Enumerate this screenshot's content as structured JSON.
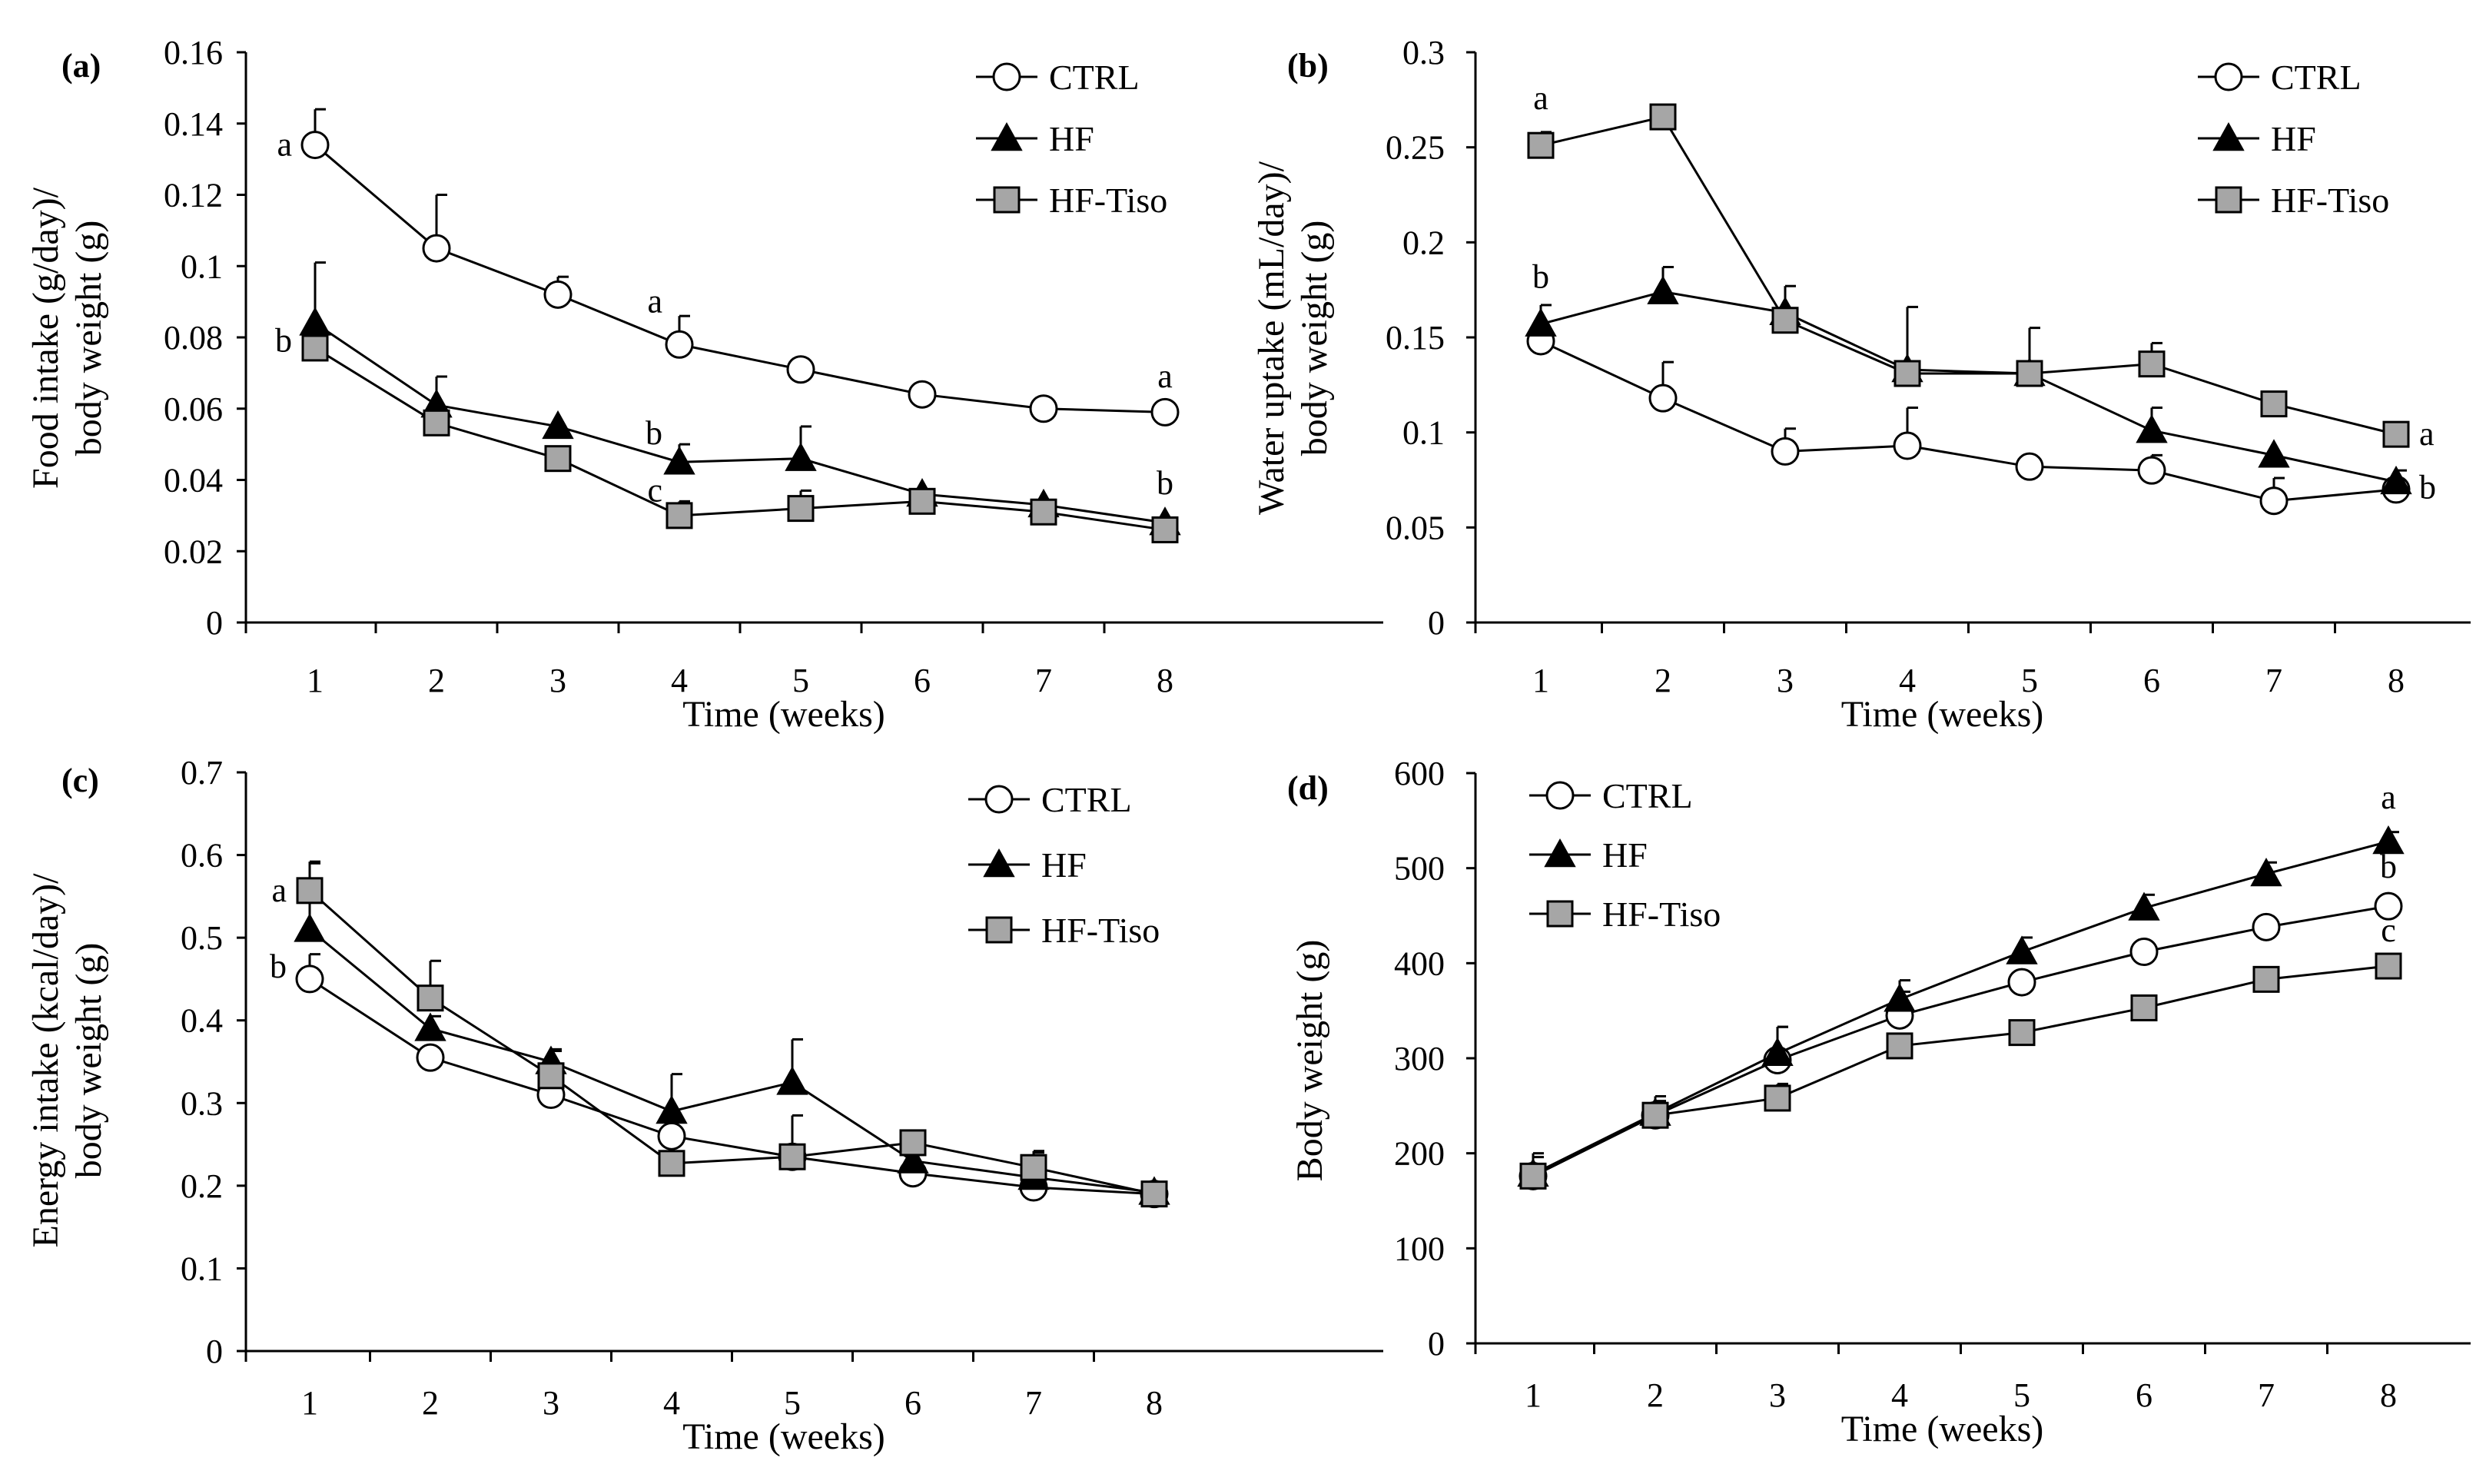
{
  "chart_data": [
    {
      "type": "line",
      "panel": "(a)",
      "ylabel_lines": [
        "Food intake (g/day)/",
        "body weight (g)"
      ],
      "xlabel": "Time (weeks)",
      "x": [
        1,
        2,
        3,
        4,
        5,
        6,
        7,
        8
      ],
      "ylim": [
        0,
        0.16
      ],
      "yticks": [
        0,
        0.02,
        0.04,
        0.06,
        0.08,
        0.1,
        0.12,
        0.14,
        0.16
      ],
      "ytick_labels": [
        "0",
        "0.02",
        "0.04",
        "0.06",
        "0.08",
        "0.1",
        "0.12",
        "0.14",
        "0.16"
      ],
      "legend": "top-right",
      "series": [
        {
          "name": "CTRL",
          "marker": "circle",
          "values": [
            0.134,
            0.105,
            0.092,
            0.078,
            0.071,
            0.064,
            0.06,
            0.059
          ],
          "errors": [
            0.01,
            0.015,
            0.005,
            0.008,
            0,
            0,
            0,
            0
          ]
        },
        {
          "name": "HF",
          "marker": "triangle",
          "values": [
            0.084,
            0.061,
            0.055,
            0.045,
            0.046,
            0.036,
            0.033,
            0.028
          ],
          "errors": [
            0.017,
            0.008,
            0,
            0.005,
            0.009,
            0,
            0,
            0
          ]
        },
        {
          "name": "HF-Tiso",
          "marker": "square",
          "values": [
            0.077,
            0.056,
            0.046,
            0.03,
            0.032,
            0.034,
            0.031,
            0.026
          ],
          "errors": [
            0,
            0,
            0,
            0.004,
            0.005,
            0,
            0,
            0.003
          ]
        }
      ],
      "annotations": [
        {
          "text": "a",
          "x": 1,
          "y": 0.134,
          "side": "left"
        },
        {
          "text": "b",
          "x": 1,
          "y": 0.079,
          "side": "left"
        },
        {
          "text": "a",
          "x": 4,
          "y": 0.087,
          "side": "above-left"
        },
        {
          "text": "b",
          "x": 4,
          "y": 0.05,
          "side": "above-left"
        },
        {
          "text": "c",
          "x": 4,
          "y": 0.034,
          "side": "above-left"
        },
        {
          "text": "a",
          "x": 8,
          "y": 0.066,
          "side": "above"
        },
        {
          "text": "b",
          "x": 8,
          "y": 0.036,
          "side": "above"
        }
      ]
    },
    {
      "type": "line",
      "panel": "(b)",
      "ylabel_lines": [
        "Water uptake (mL/day)/",
        "body weight (g)"
      ],
      "xlabel": "Time (weeks)",
      "x": [
        1,
        2,
        3,
        4,
        5,
        6,
        7,
        8
      ],
      "ylim": [
        0,
        0.3
      ],
      "yticks": [
        0,
        0.05,
        0.1,
        0.15,
        0.2,
        0.25,
        0.3
      ],
      "ytick_labels": [
        "0",
        "0.05",
        "0.1",
        "0.15",
        "0.2",
        "0.25",
        "0.3"
      ],
      "legend": "top-right",
      "series": [
        {
          "name": "CTRL",
          "marker": "circle",
          "values": [
            0.148,
            0.118,
            0.09,
            0.093,
            0.082,
            0.08,
            0.064,
            0.07
          ],
          "errors": [
            0,
            0.019,
            0.012,
            0.02,
            0,
            0.008,
            0.012,
            0
          ]
        },
        {
          "name": "HF",
          "marker": "triangle",
          "values": [
            0.157,
            0.174,
            0.163,
            0.133,
            0.131,
            0.101,
            0.088,
            0.074
          ],
          "errors": [
            0.01,
            0.013,
            0.014,
            0.033,
            0.024,
            0.012,
            0,
            0.006
          ]
        },
        {
          "name": "HF-Tiso",
          "marker": "square",
          "values": [
            0.251,
            0.266,
            0.159,
            0.131,
            0.131,
            0.136,
            0.115,
            0.099
          ],
          "errors": [
            0.007,
            0,
            0,
            0,
            0,
            0.011,
            0,
            0.006
          ]
        }
      ],
      "annotations": [
        {
          "text": "a",
          "x": 1,
          "y": 0.27,
          "side": "above"
        },
        {
          "text": "b",
          "x": 1,
          "y": 0.176,
          "side": "above"
        },
        {
          "text": "a",
          "x": 8,
          "y": 0.099,
          "side": "right"
        },
        {
          "text": "b",
          "x": 8,
          "y": 0.071,
          "side": "right"
        }
      ]
    },
    {
      "type": "line",
      "panel": "(c)",
      "ylabel_lines": [
        "Energy intake (kcal/day)/",
        "body weight (g)"
      ],
      "xlabel": "Time (weeks)",
      "x": [
        1,
        2,
        3,
        4,
        5,
        6,
        7,
        8
      ],
      "ylim": [
        0,
        0.7
      ],
      "yticks": [
        0,
        0.1,
        0.2,
        0.3,
        0.4,
        0.5,
        0.6,
        0.7
      ],
      "ytick_labels": [
        "0",
        "0.1",
        "0.2",
        "0.3",
        "0.4",
        "0.5",
        "0.6",
        "0.7"
      ],
      "legend": "top-right",
      "series": [
        {
          "name": "CTRL",
          "marker": "circle",
          "values": [
            0.45,
            0.355,
            0.31,
            0.26,
            0.235,
            0.215,
            0.198,
            0.19
          ],
          "errors": [
            0.03,
            0,
            0,
            0,
            0,
            0,
            0,
            0
          ]
        },
        {
          "name": "HF",
          "marker": "triangle",
          "values": [
            0.51,
            0.39,
            0.35,
            0.29,
            0.325,
            0.23,
            0.21,
            0.192
          ],
          "errors": [
            0.08,
            0.015,
            0.015,
            0.045,
            0.052,
            0,
            0.03,
            0.008
          ]
        },
        {
          "name": "HF-Tiso",
          "marker": "square",
          "values": [
            0.557,
            0.427,
            0.333,
            0.227,
            0.235,
            0.252,
            0.222,
            0.19
          ],
          "errors": [
            0.035,
            0.045,
            0.03,
            0,
            0.05,
            0,
            0.02,
            0
          ]
        }
      ],
      "annotations": [
        {
          "text": "a",
          "x": 1,
          "y": 0.557,
          "side": "left"
        },
        {
          "text": "b",
          "x": 1,
          "y": 0.465,
          "side": "left"
        }
      ]
    },
    {
      "type": "line",
      "panel": "(d)",
      "ylabel_lines": [
        "Body weight (g)"
      ],
      "xlabel": "Time (weeks)",
      "x": [
        1,
        2,
        3,
        4,
        5,
        6,
        7,
        8
      ],
      "ylim": [
        0,
        600
      ],
      "yticks": [
        0,
        100,
        200,
        300,
        400,
        500,
        600
      ],
      "ytick_labels": [
        "0",
        "100",
        "200",
        "300",
        "400",
        "500",
        "600"
      ],
      "legend": "top-left",
      "series": [
        {
          "name": "CTRL",
          "marker": "circle",
          "values": [
            176,
            240,
            298,
            345,
            380,
            412,
            438,
            460
          ],
          "errors": [
            20,
            0,
            35,
            25,
            0,
            0,
            0,
            0
          ]
        },
        {
          "name": "HF",
          "marker": "triangle",
          "values": [
            178,
            242,
            305,
            362,
            412,
            458,
            494,
            528
          ],
          "errors": [
            22,
            18,
            28,
            20,
            15,
            14,
            12,
            10
          ]
        },
        {
          "name": "HF-Tiso",
          "marker": "square",
          "values": [
            176,
            240,
            258,
            313,
            327,
            353,
            383,
            397
          ],
          "errors": [
            0,
            15,
            15,
            0,
            0,
            0,
            0,
            0
          ]
        }
      ],
      "annotations": [
        {
          "text": "a",
          "x": 8,
          "y": 563,
          "side": "above"
        },
        {
          "text": "b",
          "x": 8,
          "y": 490,
          "side": "above"
        },
        {
          "text": "c",
          "x": 8,
          "y": 423,
          "side": "above"
        }
      ]
    }
  ]
}
